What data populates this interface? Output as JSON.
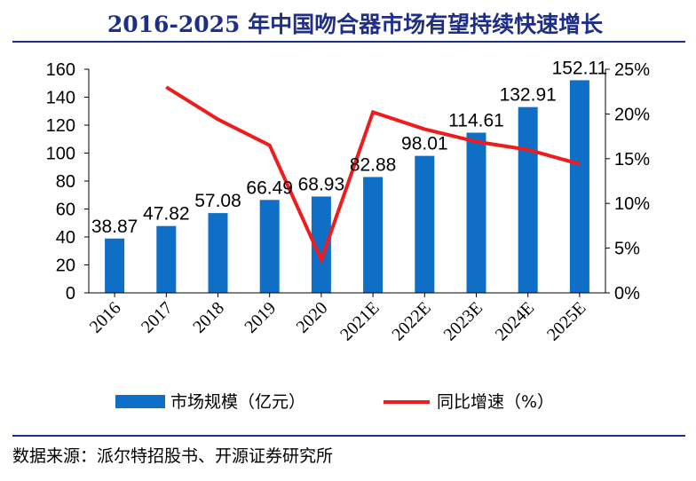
{
  "colors": {
    "title": "#1f2e86",
    "bar": "#0f6fc6",
    "line": "#ee1c1c",
    "rule": "#1f2e86"
  },
  "chart_data": {
    "type": "bar",
    "title": "2016-2025 年中国吻合器市场有望持续快速增长",
    "categories": [
      "2016",
      "2017",
      "2018",
      "2019",
      "2020",
      "2021E",
      "2022E",
      "2023E",
      "2024E",
      "2025E"
    ],
    "series": [
      {
        "name": "市场规模（亿元）",
        "type": "bar",
        "axis": "left",
        "values": [
          38.87,
          47.82,
          57.08,
          66.49,
          68.93,
          82.88,
          98.01,
          114.61,
          132.91,
          152.11
        ],
        "labels": [
          "38.87",
          "47.82",
          "57.08",
          "66.49",
          "68.93",
          "82.88",
          "98.01",
          "114.61",
          "132.91",
          "152.11"
        ]
      },
      {
        "name": "同比增速（%）",
        "type": "line",
        "axis": "right",
        "values": [
          null,
          23.0,
          19.4,
          16.5,
          3.7,
          20.2,
          18.3,
          16.9,
          16.0,
          14.4
        ]
      }
    ],
    "y_left": {
      "ylim": [
        0,
        160
      ],
      "ticks": [
        "0",
        "20",
        "40",
        "60",
        "80",
        "100",
        "120",
        "140",
        "160"
      ]
    },
    "y_right": {
      "ylim": [
        0,
        25
      ],
      "ticks": [
        "0%",
        "5%",
        "10%",
        "15%",
        "20%",
        "25%"
      ]
    },
    "legend_position": "bottom",
    "grid": false
  },
  "footer": {
    "source": "数据来源：派尔特招股书、开源证券研究所"
  }
}
